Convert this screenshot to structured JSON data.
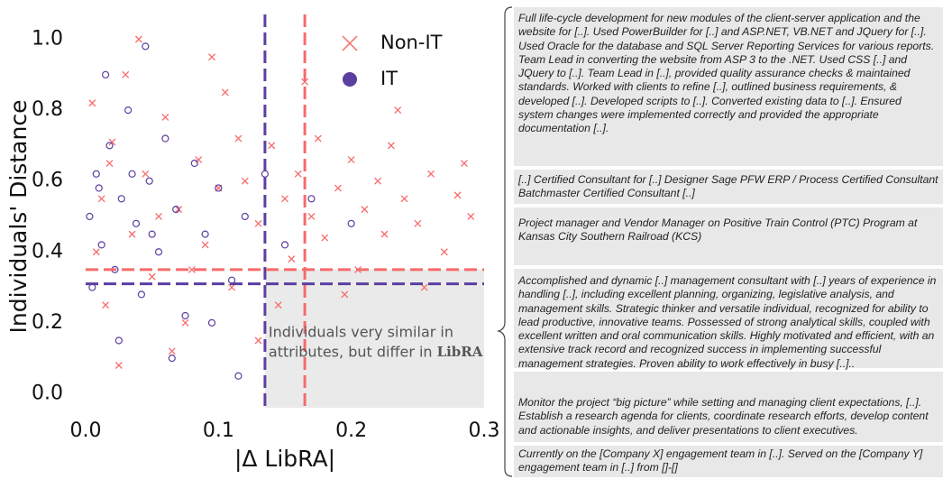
{
  "chart_data": {
    "type": "scatter",
    "xlabel": "|Δ LibRA|",
    "ylabel": "Individuals' Distance",
    "xlim": [
      0,
      0.3
    ],
    "ylim": [
      -0.06,
      1.07
    ],
    "xticks": [
      {
        "value": 0,
        "label": "0.0"
      },
      0.1,
      0.2,
      0.3
    ],
    "yticks": [
      {
        "value": 0,
        "label": "0.0"
      },
      0.2,
      0.4,
      0.6,
      0.8,
      {
        "value": 1,
        "label": "1.0"
      }
    ],
    "legend": "upper right",
    "series": [
      {
        "name": "Non-IT",
        "color": "#f76b6b",
        "marker": "x",
        "x": [
          0.005,
          0.012,
          0.02,
          0.03,
          0.035,
          0.045,
          0.05,
          0.06,
          0.07,
          0.075,
          0.085,
          0.09,
          0.1,
          0.105,
          0.11,
          0.12,
          0.13,
          0.14,
          0.15,
          0.155,
          0.16,
          0.17,
          0.175,
          0.18,
          0.19,
          0.2,
          0.205,
          0.21,
          0.22,
          0.225,
          0.23,
          0.24,
          0.25,
          0.26,
          0.27,
          0.28,
          0.29,
          0.015,
          0.025,
          0.04,
          0.065,
          0.095,
          0.13,
          0.008,
          0.018,
          0.055,
          0.08,
          0.115,
          0.145,
          0.165,
          0.195,
          0.235,
          0.255,
          0.285
        ],
        "values": [
          0.82,
          0.55,
          0.71,
          0.9,
          0.45,
          0.62,
          0.33,
          0.78,
          0.52,
          0.2,
          0.66,
          0.42,
          0.58,
          0.85,
          0.3,
          0.6,
          0.48,
          0.7,
          0.55,
          0.38,
          0.62,
          0.5,
          0.72,
          0.44,
          0.58,
          0.66,
          0.35,
          0.52,
          0.6,
          0.45,
          0.7,
          0.55,
          0.48,
          0.62,
          0.4,
          0.56,
          0.5,
          0.25,
          0.08,
          1.0,
          0.12,
          0.95,
          0.15,
          0.4,
          0.65,
          0.5,
          0.35,
          0.72,
          0.25,
          0.88,
          0.28,
          0.8,
          0.3,
          0.65
        ]
      },
      {
        "name": "IT",
        "color": "#5b3fa0",
        "marker": "o",
        "x": [
          0.003,
          0.008,
          0.012,
          0.018,
          0.022,
          0.027,
          0.032,
          0.038,
          0.042,
          0.048,
          0.055,
          0.06,
          0.068,
          0.075,
          0.082,
          0.09,
          0.1,
          0.11,
          0.12,
          0.135,
          0.15,
          0.17,
          0.2,
          0.005,
          0.015,
          0.025,
          0.045,
          0.065,
          0.095,
          0.115,
          0.01,
          0.035,
          0.05
        ],
        "values": [
          0.5,
          0.62,
          0.42,
          0.7,
          0.35,
          0.55,
          0.8,
          0.48,
          0.28,
          0.6,
          0.4,
          0.72,
          0.52,
          0.22,
          0.65,
          0.45,
          0.58,
          0.32,
          0.5,
          0.62,
          0.42,
          0.55,
          0.48,
          0.3,
          0.9,
          0.15,
          0.98,
          0.1,
          0.2,
          0.05,
          0.58,
          0.62,
          0.45
        ]
      }
    ],
    "reference_lines": [
      {
        "axis": "x",
        "value": 0.135,
        "color": "#5b3fa0"
      },
      {
        "axis": "x",
        "value": 0.165,
        "color": "#f76b6b"
      },
      {
        "axis": "y",
        "value": 0.31,
        "color": "#5b3fa0"
      },
      {
        "axis": "y",
        "value": 0.35,
        "color": "#f76b6b"
      }
    ],
    "annotation": {
      "lines": [
        "Individuals very similar in",
        "attributes, but differ in"
      ],
      "emphasis": "LibRA"
    }
  },
  "profiles": [
    "Full life-cycle development for new modules of the client-server application and the website for [..]. Used PowerBuilder for [..] and ASP.NET, VB.NET and JQuery for [..]. Used Oracle for the database and SQL Server Reporting Services for various reports. Team Lead in converting the website from ASP 3 to the .NET. Used CSS [..] and JQuery to [..]. Team Lead in [..], provided quality assurance checks & maintained standards. Worked with clients to refine [..], outlined business requirements, & developed [..]. Developed scripts to [..]. Converted existing data to  [..]. Ensured system changes were implemented correctly and provided the appropriate documentation [..].",
    "[..] Certified Consultant for [..] Designer Sage PFW ERP / Process Certified Consultant Batchmaster Certified Consultant [..]",
    "Project manager and Vendor Manager on Positive Train Control (PTC) Program at Kansas City Southern Railroad (KCS)",
    "Accomplished and dynamic [..] management consultant with [..] years of experience in handling [..], including excellent planning, organizing, legislative analysis, and management skills. Strategic thinker and versatile individual, recognized for ability to lead productive, innovative teams. Possessed of strong analytical skills, coupled with excellent written and oral communication skills. Highly motivated and efficient, with an extensive track record and recognized success in implementing successful management strategies. Proven ability to work effectively in busy [..]..",
    "Monitor the project “big picture” while setting and managing client expectations, [..]. Establish a research agenda for clients, coordinate research efforts, develop content and actionable insights, and deliver presentations to client executives.",
    "Currently on the [Company X] engagement team in [..]. Served on the [Company Y] engagement team in [..] from []-[]"
  ]
}
